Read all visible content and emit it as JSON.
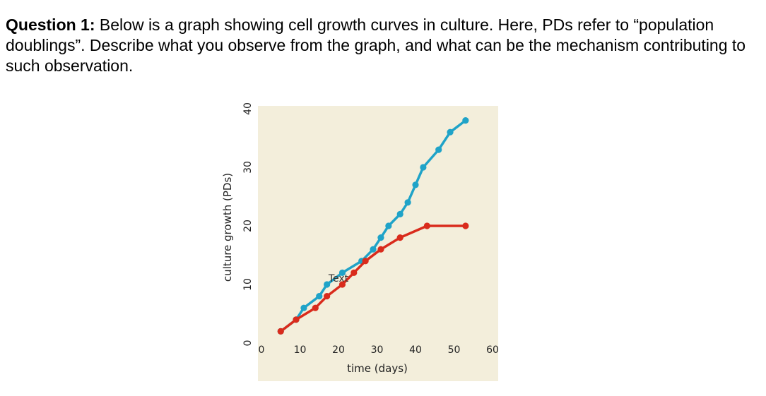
{
  "question": {
    "label": "Question 1:",
    "text": "Below is a graph showing cell growth curves in culture. Here, PDs refer to “population doublings”. Describe what you observe from the graph, and what can be the mechanism contributing to such observation."
  },
  "chart_data": {
    "type": "line",
    "xlabel": "time (days)",
    "ylabel": "culture growth (PDs)",
    "xlim": [
      0,
      60
    ],
    "ylim": [
      0,
      40
    ],
    "xticks": [
      "0",
      "10",
      "20",
      "30",
      "40",
      "50",
      "60"
    ],
    "yticks": [
      "0",
      "10",
      "20",
      "30",
      "40"
    ],
    "annotation": "Text",
    "plot_background": "#f3eedb",
    "series": [
      {
        "color": "#1fa3c8",
        "x": [
          5,
          9,
          11,
          15,
          17,
          21,
          26,
          29,
          31,
          33,
          36,
          38,
          40,
          42,
          46,
          49,
          53
        ],
        "y": [
          2,
          4,
          6,
          8,
          10,
          12,
          14,
          16,
          18,
          20,
          22,
          24,
          27,
          30,
          33,
          36,
          38
        ]
      },
      {
        "color": "#d92b1c",
        "x": [
          5,
          9,
          14,
          17,
          21,
          24,
          27,
          31,
          36,
          43,
          53
        ],
        "y": [
          2,
          4,
          6,
          8,
          10,
          12,
          14,
          16,
          18,
          20,
          20
        ]
      }
    ]
  }
}
